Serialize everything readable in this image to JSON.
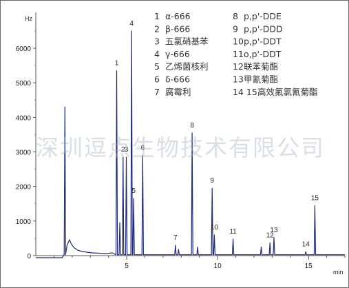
{
  "chart_data": {
    "type": "line",
    "xlabel": "min",
    "ylabel": "Hz",
    "xlim": [
      0,
      17
    ],
    "ylim": [
      0,
      7000
    ],
    "x_ticks": [
      5,
      10,
      15
    ],
    "y_ticks": [
      0,
      1000,
      2000,
      3000,
      4000,
      5000,
      6000
    ],
    "grid": false,
    "trace_color": "#1f2a7a",
    "baseline_start": -60,
    "noise_points": [
      [
        1.72,
        300
      ],
      [
        1.85,
        460
      ],
      [
        1.95,
        340
      ],
      [
        2.1,
        230
      ],
      [
        2.3,
        160
      ],
      [
        2.55,
        120
      ],
      [
        2.8,
        100
      ],
      [
        3.1,
        80
      ],
      [
        3.5,
        70
      ],
      [
        3.9,
        60
      ],
      [
        4.2,
        80
      ]
    ],
    "peaks": [
      {
        "label": "",
        "x": 1.6,
        "y": 4300
      },
      {
        "label": "1",
        "x": 4.45,
        "y": 5350
      },
      {
        "label": "",
        "x": 4.62,
        "y": 950
      },
      {
        "label": "2",
        "x": 4.8,
        "y": 2850
      },
      {
        "label": "3",
        "x": 4.98,
        "y": 2850
      },
      {
        "label": "4",
        "x": 5.27,
        "y": 6500
      },
      {
        "label": "5",
        "x": 5.38,
        "y": 1650
      },
      {
        "label": "6",
        "x": 5.88,
        "y": 2900
      },
      {
        "label": "7",
        "x": 7.68,
        "y": 300
      },
      {
        "label": "",
        "x": 7.85,
        "y": 180
      },
      {
        "label": "8",
        "x": 8.6,
        "y": 3550
      },
      {
        "label": "",
        "x": 8.9,
        "y": 250
      },
      {
        "label": "9",
        "x": 9.7,
        "y": 1950
      },
      {
        "label": "10",
        "x": 9.82,
        "y": 600
      },
      {
        "label": "11",
        "x": 10.85,
        "y": 480
      },
      {
        "label": "",
        "x": 12.4,
        "y": 250
      },
      {
        "label": "12",
        "x": 12.88,
        "y": 370
      },
      {
        "label": "13",
        "x": 13.1,
        "y": 520
      },
      {
        "label": "14",
        "x": 14.85,
        "y": 110
      },
      {
        "label": "15",
        "x": 15.35,
        "y": 1450
      }
    ]
  },
  "legend": [
    {
      "num": "1",
      "name": "α-666"
    },
    {
      "num": "2",
      "name": "β-666"
    },
    {
      "num": "3",
      "name": "五氯硝基苯"
    },
    {
      "num": "4",
      "name": "γ-666"
    },
    {
      "num": "5",
      "name": "乙烯菌核利"
    },
    {
      "num": "6",
      "name": "δ-666"
    },
    {
      "num": "7",
      "name": "腐霉利"
    },
    {
      "num": "8",
      "name": "p,p'-DDE"
    },
    {
      "num": "9",
      "name": "p,p'-DDD"
    },
    {
      "num": "10",
      "name": "p,p'-DDT"
    },
    {
      "num": "11",
      "name": "o,p'-DDT"
    },
    {
      "num": "12",
      "name": "联苯菊酯"
    },
    {
      "num": "13",
      "name": "甲氰菊酯"
    },
    {
      "num": "14 15",
      "name": "高效氟氯氰菊酯"
    }
  ],
  "watermark": "深圳逗点生物技术有限公司"
}
